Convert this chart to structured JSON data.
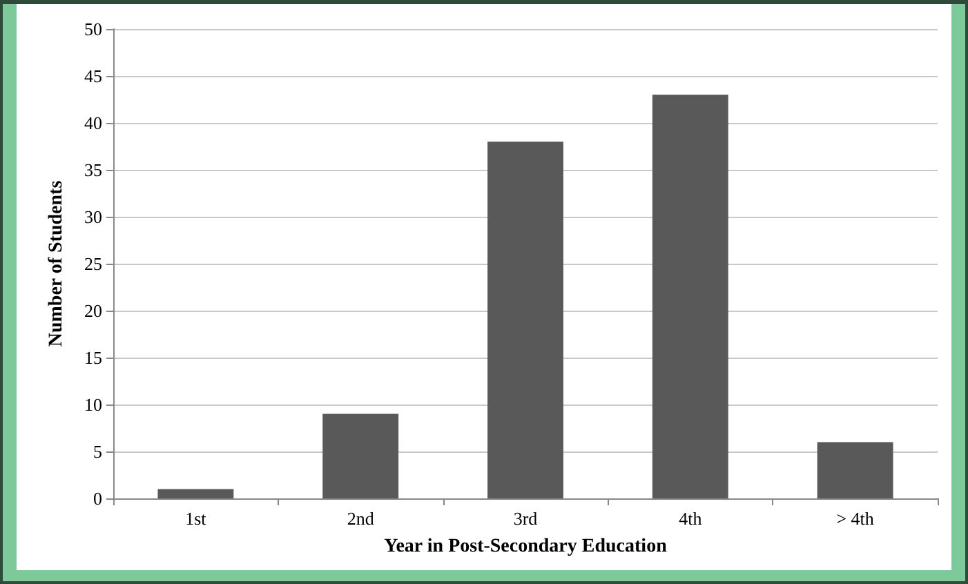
{
  "chart_data": {
    "type": "bar",
    "xlabel": "Year in Post-Secondary Education",
    "ylabel": "Number of Students",
    "categories": [
      "1st",
      "2nd",
      "3rd",
      "4th",
      "> 4th"
    ],
    "values": [
      1,
      9,
      38,
      43,
      6
    ],
    "color": "#595959",
    "ylim": [
      0,
      50
    ],
    "yticks": [
      0,
      5,
      10,
      15,
      20,
      25,
      30,
      35,
      40,
      45,
      50
    ],
    "grid": "y"
  }
}
